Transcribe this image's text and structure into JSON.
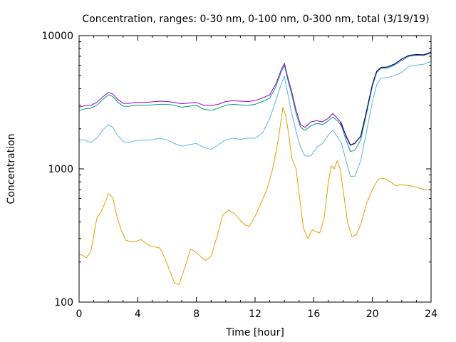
{
  "chart_data": {
    "type": "line",
    "title": "Concentration, ranges: 0-30 nm, 0-100 nm, 0-300 nm, total (3/19/19)",
    "xlabel": "Time [hour]",
    "ylabel": "Concentration",
    "xlim": [
      0,
      24
    ],
    "ylim": [
      100,
      10000
    ],
    "yscale": "log",
    "grid": false,
    "legend": "none",
    "x_ticks": [
      "0",
      "4",
      "8",
      "12",
      "16",
      "20",
      "24"
    ],
    "y_ticks": [
      "100",
      "1000",
      "10000"
    ],
    "series": [
      {
        "color": "#E69F00",
        "x": [
          0,
          0.2,
          0.5,
          0.8,
          1.2,
          1.6,
          2.0,
          2.3,
          2.6,
          2.9,
          3.2,
          3.5,
          3.9,
          4.2,
          4.5,
          4.8,
          5.1,
          5.5,
          5.8,
          6.2,
          6.5,
          6.8,
          7.0,
          7.3,
          7.6,
          7.9,
          8.2,
          8.6,
          9.0,
          9.4,
          9.8,
          10.2,
          10.6,
          11.0,
          11.3,
          11.6,
          12.0,
          12.4,
          12.8,
          13.2,
          13.6,
          13.9,
          14.1,
          14.3,
          14.5,
          14.8,
          15.0,
          15.3,
          15.6,
          15.9,
          16.1,
          16.4,
          16.7,
          17.0,
          17.2,
          17.4,
          17.6,
          17.8,
          18.0,
          18.3,
          18.6,
          18.9,
          19.2,
          19.6,
          20.0,
          20.4,
          20.8,
          21.2,
          21.6,
          22.0,
          22.5,
          23.0,
          23.5,
          24.0
        ],
        "y": [
          230,
          225,
          215,
          240,
          420,
          500,
          650,
          610,
          430,
          340,
          290,
          285,
          285,
          295,
          280,
          265,
          260,
          255,
          220,
          170,
          140,
          135,
          155,
          195,
          250,
          240,
          225,
          205,
          220,
          310,
          450,
          490,
          460,
          410,
          380,
          370,
          440,
          550,
          700,
          1000,
          1700,
          2900,
          2500,
          1800,
          1200,
          1000,
          650,
          360,
          300,
          350,
          340,
          330,
          420,
          800,
          1050,
          1000,
          1150,
          1000,
          700,
          400,
          310,
          320,
          380,
          550,
          700,
          840,
          850,
          800,
          750,
          760,
          750,
          730,
          700,
          700
        ]
      },
      {
        "color": "#56B4E9",
        "x": [
          0,
          0.4,
          0.8,
          1.2,
          1.6,
          2.0,
          2.3,
          2.6,
          3.0,
          3.4,
          3.8,
          4.2,
          4.6,
          5.0,
          5.5,
          6.0,
          6.5,
          7.0,
          7.5,
          8.0,
          8.5,
          9.0,
          9.5,
          10.0,
          10.5,
          11.0,
          11.5,
          12.0,
          12.5,
          13.0,
          13.4,
          13.8,
          14.0,
          14.2,
          14.5,
          14.8,
          15.1,
          15.4,
          15.8,
          16.2,
          16.6,
          17.0,
          17.3,
          17.6,
          17.9,
          18.2,
          18.5,
          18.8,
          19.2,
          19.6,
          20.0,
          20.3,
          20.6,
          21.0,
          21.5,
          22.0,
          22.5,
          23.0,
          23.5,
          24.0
        ],
        "y": [
          1650,
          1640,
          1580,
          1700,
          1950,
          2150,
          2050,
          1800,
          1600,
          1580,
          1620,
          1640,
          1640,
          1650,
          1700,
          1650,
          1550,
          1480,
          1520,
          1550,
          1450,
          1400,
          1520,
          1650,
          1700,
          1660,
          1700,
          1700,
          1850,
          2400,
          3200,
          4400,
          4950,
          3800,
          2600,
          1900,
          1450,
          1250,
          1250,
          1450,
          1550,
          1800,
          1950,
          1750,
          1550,
          1150,
          880,
          880,
          1150,
          1900,
          3200,
          4300,
          4800,
          4850,
          5000,
          5300,
          5900,
          6000,
          6100,
          6400
        ]
      },
      {
        "color": "#009E73",
        "x": [
          0,
          0.4,
          0.8,
          1.2,
          1.6,
          2.0,
          2.3,
          2.6,
          3.0,
          3.4,
          3.8,
          4.2,
          4.6,
          5.0,
          5.5,
          6.0,
          6.5,
          7.0,
          7.5,
          8.0,
          8.5,
          9.0,
          9.5,
          10.0,
          10.5,
          11.0,
          11.5,
          12.0,
          12.5,
          13.0,
          13.4,
          13.8,
          14.0,
          14.2,
          14.5,
          14.8,
          15.1,
          15.4,
          15.8,
          16.2,
          16.6,
          17.0,
          17.3,
          17.6,
          17.9,
          18.2,
          18.5,
          18.8,
          19.2,
          19.6,
          20.0,
          20.3,
          20.6,
          21.0,
          21.5,
          22.0,
          22.5,
          23.0,
          23.5,
          24.0
        ],
        "y": [
          2750,
          2820,
          2850,
          3000,
          3300,
          3600,
          3500,
          3200,
          2950,
          2950,
          3000,
          3000,
          3000,
          3020,
          3050,
          3050,
          3000,
          2900,
          2950,
          3000,
          2800,
          2750,
          2850,
          3000,
          3050,
          3020,
          3000,
          3050,
          3200,
          3400,
          4100,
          5400,
          6000,
          4800,
          3600,
          2600,
          2050,
          1950,
          2100,
          2200,
          2150,
          2300,
          2450,
          2300,
          2100,
          1650,
          1350,
          1380,
          1650,
          2600,
          4200,
          5300,
          5700,
          5700,
          6000,
          6500,
          7000,
          7100,
          7100,
          7400
        ]
      },
      {
        "color": "#9400D3",
        "x": [
          0,
          0.4,
          0.8,
          1.2,
          1.6,
          2.0,
          2.3,
          2.6,
          3.0,
          3.4,
          3.8,
          4.2,
          4.6,
          5.0,
          5.5,
          6.0,
          6.5,
          7.0,
          7.5,
          8.0,
          8.5,
          9.0,
          9.5,
          10.0,
          10.5,
          11.0,
          11.5,
          12.0,
          12.5,
          13.0,
          13.4,
          13.8,
          14.0,
          14.2,
          14.5,
          14.8,
          15.1,
          15.4,
          15.8,
          16.2,
          16.6,
          17.0,
          17.3,
          17.6,
          17.9,
          18.2,
          18.5,
          18.8,
          19.2,
          19.6,
          20.0,
          20.3,
          20.6,
          21.0,
          21.5,
          22.0,
          22.5,
          23.0,
          23.5,
          24.0
        ],
        "y": [
          2900,
          2980,
          3000,
          3150,
          3450,
          3750,
          3650,
          3350,
          3100,
          3100,
          3150,
          3150,
          3150,
          3180,
          3220,
          3200,
          3150,
          3080,
          3120,
          3150,
          3000,
          2980,
          3050,
          3200,
          3250,
          3220,
          3200,
          3250,
          3400,
          3600,
          4300,
          5600,
          6200,
          5000,
          3800,
          2750,
          2150,
          2050,
          2250,
          2300,
          2250,
          2400,
          2600,
          2400,
          2200,
          1750,
          1500,
          1550,
          1750,
          2700,
          4300,
          5400,
          5750,
          5800,
          6100,
          6650,
          7100,
          7200,
          7150,
          7500
        ]
      },
      {
        "color": "#000080",
        "x": [
          17.8,
          18.2,
          18.5,
          18.8,
          19.2,
          19.6,
          20.0,
          20.3,
          20.6,
          21.0,
          21.5,
          22.0,
          22.5,
          23.0,
          23.5,
          24.0
        ],
        "y": [
          2250,
          1780,
          1510,
          1560,
          1760,
          2720,
          4320,
          5420,
          5780,
          5820,
          6120,
          6680,
          7120,
          7220,
          7180,
          7520
        ]
      }
    ]
  }
}
